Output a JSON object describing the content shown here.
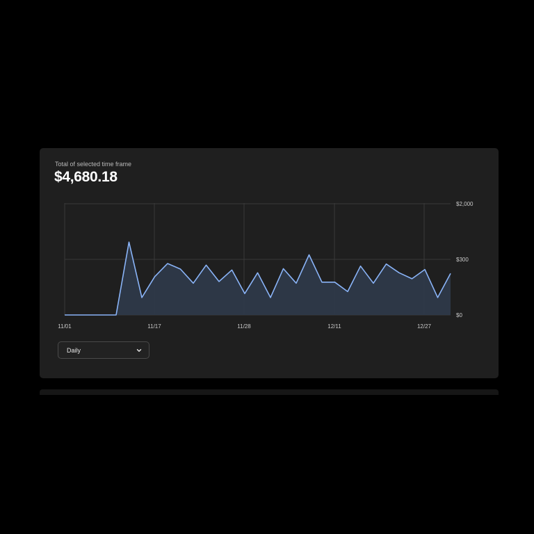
{
  "summary": {
    "subtitle": "Total of selected time frame",
    "total": "$4,680.18"
  },
  "controls": {
    "interval_select": {
      "selected": "Daily",
      "icon": "chevron-down-icon"
    }
  },
  "colors": {
    "background": "#000000",
    "card": "#1f1f1f",
    "line": "#8ab4f8",
    "area_fill": "#2f3a4a",
    "grid": "#3a3a3a"
  },
  "chart_data": {
    "type": "area",
    "title": "",
    "xlabel": "",
    "ylabel": "",
    "x_tick_labels": [
      "11/01",
      "11/17",
      "11/28",
      "12/11",
      "12/27"
    ],
    "y_tick_labels": [
      "$0",
      "$300",
      "$2,000"
    ],
    "y_ticks": [
      0,
      300,
      2000
    ],
    "y_scale": "log-like (labels $0, $300, $2,000 evenly spaced)",
    "grid": true,
    "series": [
      {
        "values": [
          0,
          0,
          0,
          0,
          0,
          540,
          5,
          50,
          195,
          110,
          25,
          165,
          30,
          100,
          8,
          75,
          5,
          115,
          25,
          350,
          28,
          28,
          10,
          150,
          25,
          185,
          75,
          40,
          105,
          5,
          70
        ]
      }
    ]
  }
}
